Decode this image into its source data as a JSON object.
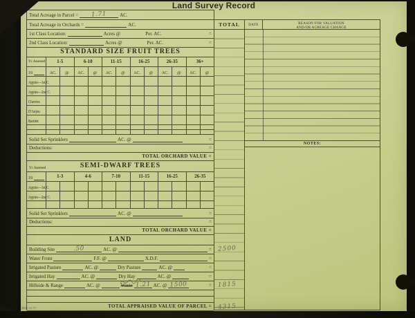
{
  "title": "Land Survey Record",
  "form_number": "2860 12-77",
  "sym": {
    "eq": "="
  },
  "colors": {
    "paper": "#c8cf92",
    "ink": "#30301e",
    "pencil": "#5f6b54"
  },
  "header_rows": {
    "parcel_label": "Total Acreage in Parcel =",
    "parcel_value": "1.71",
    "parcel_unit": "AC.",
    "orchards_label": "Total Acreage in Orchards =",
    "orchards_unit": "AC.",
    "class1_label": "1st Class Location:",
    "class1_mid": "Acres @",
    "class1_right": "Per. AC.",
    "class2_label": "2nd Class Location:",
    "class2_mid": "Acres @",
    "class2_right": "Per. AC."
  },
  "standard_table": {
    "title": "STANDARD SIZE FRUIT TREES",
    "yr_assessed": "Yr. Assessed",
    "year_prefix": "19",
    "ages": [
      "1-5",
      "6-10",
      "11-15",
      "16-25",
      "26-35",
      "36+"
    ],
    "ac": "AC.",
    "at": "@",
    "crops": [
      "Apples—1st C.",
      "Apples—2nd C.",
      "Cherries",
      "D'Anjou",
      "Bartlett"
    ]
  },
  "orchard_block1": {
    "sprinklers_label": "Solid Set Sprinklers",
    "sprinklers_mid": "AC. @",
    "deductions_label": "Deductions:",
    "total_label": "TOTAL ORCHARD VALUE ="
  },
  "semi_dwarf_table": {
    "title": "SEMI-DWARF TREES",
    "yr_assessed": "Yr. Assessed",
    "year_prefix": "19",
    "ages": [
      "1-3",
      "4-6",
      "7-10",
      "11-15",
      "16-25",
      "26-35"
    ],
    "crops": [
      "Apples—1st C.",
      "Apples—2nd C."
    ]
  },
  "orchard_block2": {
    "sprinklers_label": "Solid Set Sprinklers",
    "sprinklers_mid": "AC. @",
    "deductions_label": "Deductions:",
    "total_label": "TOTAL ORCHARD VALUE ="
  },
  "land": {
    "title": "LAND",
    "building_label": "Building Site",
    "building_value": ".50",
    "building_mid": "AC. @",
    "building_total": "2500",
    "water_label": "Water Front",
    "water_mid": "F.F. @",
    "water_right": "X.D.F.",
    "pasture_label": "Irrigated Pasture",
    "pasture_mid": "AC. @",
    "pasture_label2": "Dry Pasture",
    "pasture_mid2": "AC. @",
    "hay_label": "Irrigated Hay",
    "hay_mid": "AC. @",
    "hay_label2": "Dry Hay",
    "hay_mid2": "AC. @",
    "hillside_label": "Hillside & Range",
    "hillside_mid": "AC. @",
    "hillside_label2": "Waste",
    "hillside_value2": "1.21",
    "hillside_mid2": "AC. @",
    "hillside_rate2": "1500",
    "hillside_total": "1815"
  },
  "grand_total": {
    "label": "TOTAL APPRAISED VALUE OF PARCEL =",
    "value": "4315"
  },
  "right_panel": {
    "total": "TOTAL",
    "date": "DATE",
    "reason1": "REASON FOR VALUATION",
    "reason2": "AND/OR ACREAGE CHANGE",
    "notes": "NOTES:"
  }
}
